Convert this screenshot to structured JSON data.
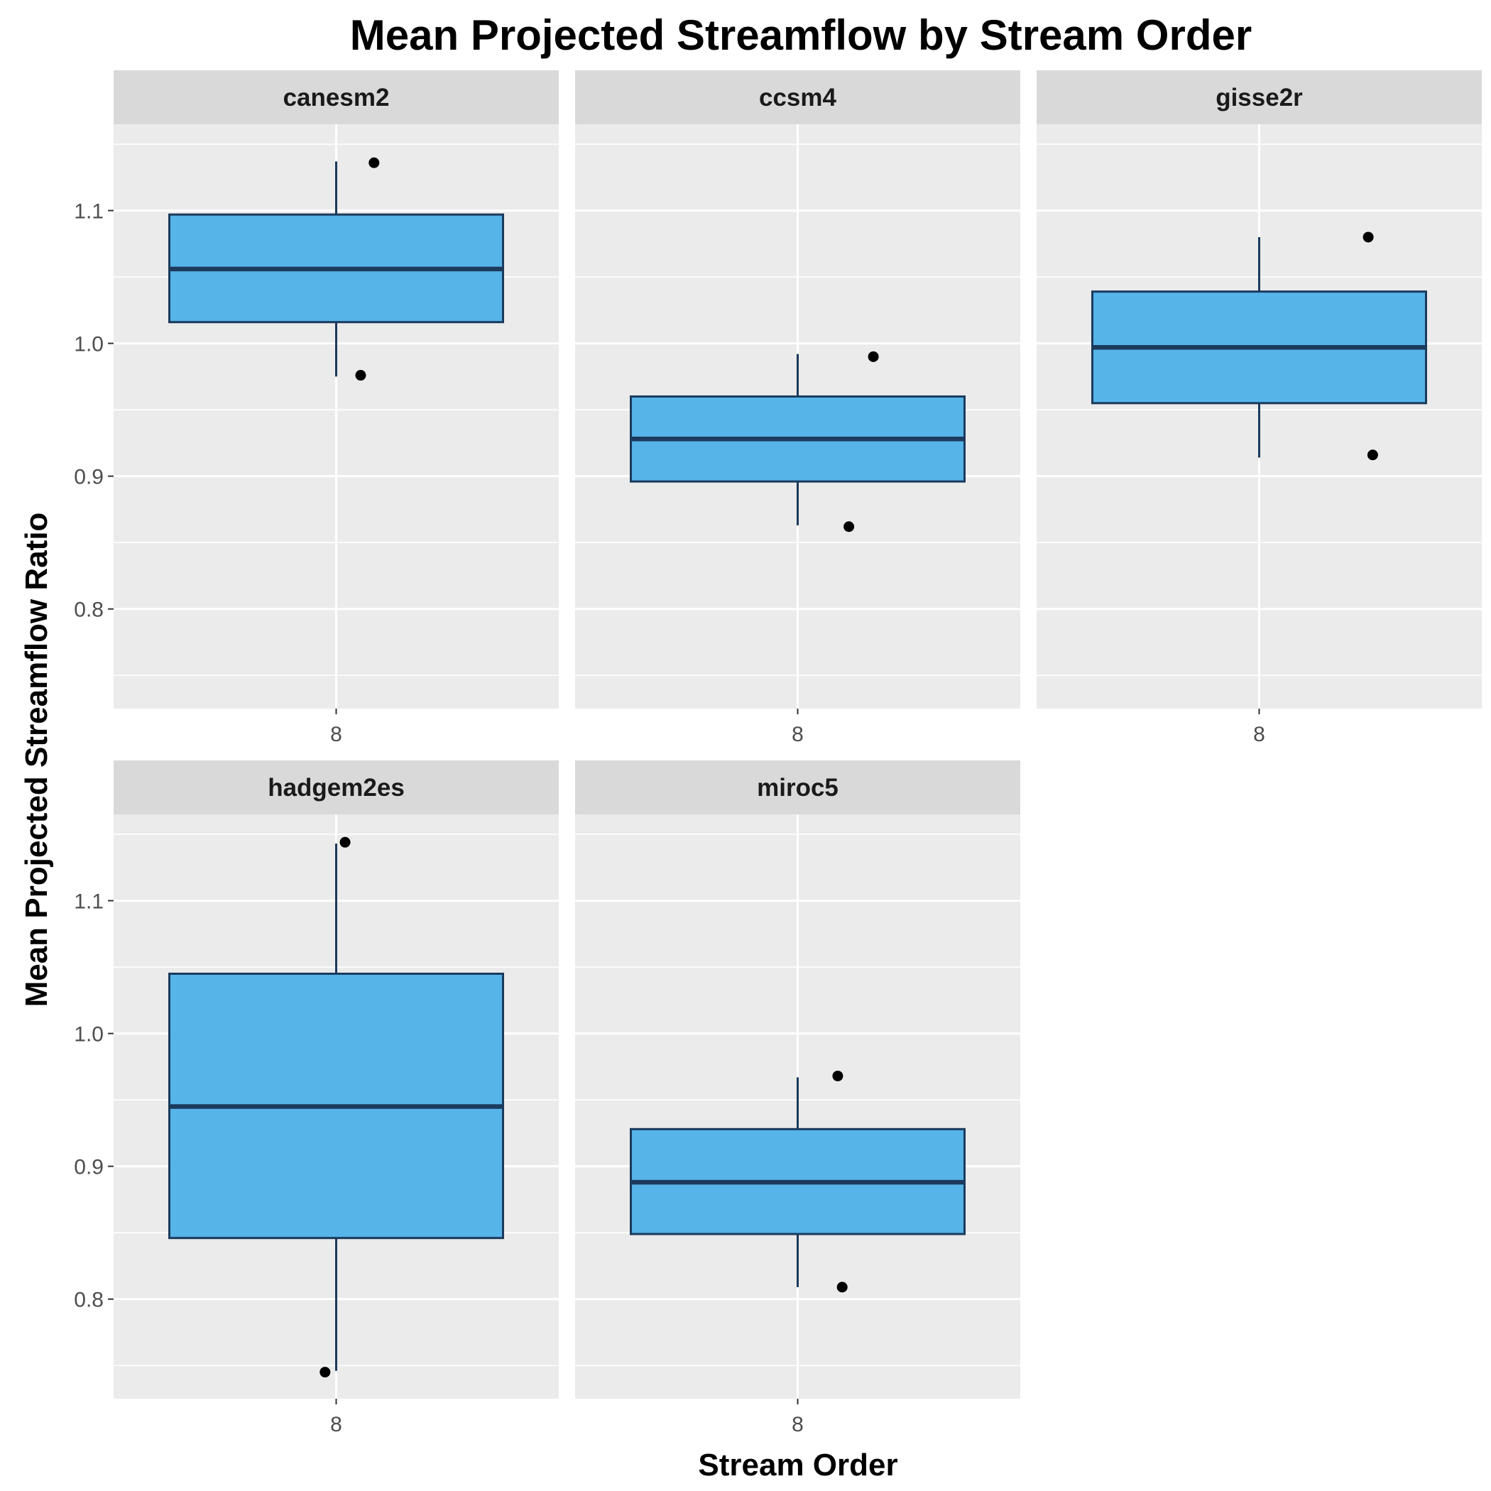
{
  "chart_data": {
    "type": "boxplot",
    "title": "Mean Projected Streamflow by Stream Order",
    "xlabel": "Stream Order",
    "ylabel": "Mean Projected Streamflow Ratio",
    "ylim": [
      0.725,
      1.165
    ],
    "y_ticks": [
      0.8,
      0.9,
      1.0,
      1.1
    ],
    "y_tick_labels": [
      "0.8",
      "0.9",
      "1.0",
      "1.1"
    ],
    "x_categories": [
      "8"
    ],
    "layout": "facet-wrap 3 columns, 2 rows",
    "colors": {
      "fill": "#56B4E9",
      "stroke": "#1B3A5C",
      "outlier": "#000000",
      "panel": "#EBEBEB",
      "strip": "#D9D9D9",
      "grid": "#FFFFFF"
    },
    "panels": [
      {
        "name": "canesm2",
        "x": "8",
        "q1": 1.016,
        "median": 1.056,
        "q3": 1.097,
        "whisker_low": 0.975,
        "whisker_high": 1.137,
        "outliers": [
          {
            "x_jitter": 0.17,
            "y": 1.136
          },
          {
            "x_jitter": 0.11,
            "y": 0.976
          }
        ]
      },
      {
        "name": "ccsm4",
        "x": "8",
        "q1": 0.896,
        "median": 0.928,
        "q3": 0.96,
        "whisker_low": 0.863,
        "whisker_high": 0.992,
        "outliers": [
          {
            "x_jitter": 0.34,
            "y": 0.99
          },
          {
            "x_jitter": 0.23,
            "y": 0.862
          }
        ]
      },
      {
        "name": "gisse2r",
        "x": "8",
        "q1": 0.955,
        "median": 0.997,
        "q3": 1.039,
        "whisker_low": 0.914,
        "whisker_high": 1.08,
        "outliers": [
          {
            "x_jitter": 0.49,
            "y": 1.08
          },
          {
            "x_jitter": 0.51,
            "y": 0.916
          }
        ]
      },
      {
        "name": "hadgem2es",
        "x": "8",
        "q1": 0.846,
        "median": 0.945,
        "q3": 1.045,
        "whisker_low": 0.746,
        "whisker_high": 1.143,
        "outliers": [
          {
            "x_jitter": 0.04,
            "y": 1.144
          },
          {
            "x_jitter": -0.05,
            "y": 0.745
          }
        ]
      },
      {
        "name": "miroc5",
        "x": "8",
        "q1": 0.849,
        "median": 0.888,
        "q3": 0.928,
        "whisker_low": 0.809,
        "whisker_high": 0.967,
        "outliers": [
          {
            "x_jitter": 0.18,
            "y": 0.968
          },
          {
            "x_jitter": 0.2,
            "y": 0.809
          }
        ]
      }
    ]
  }
}
